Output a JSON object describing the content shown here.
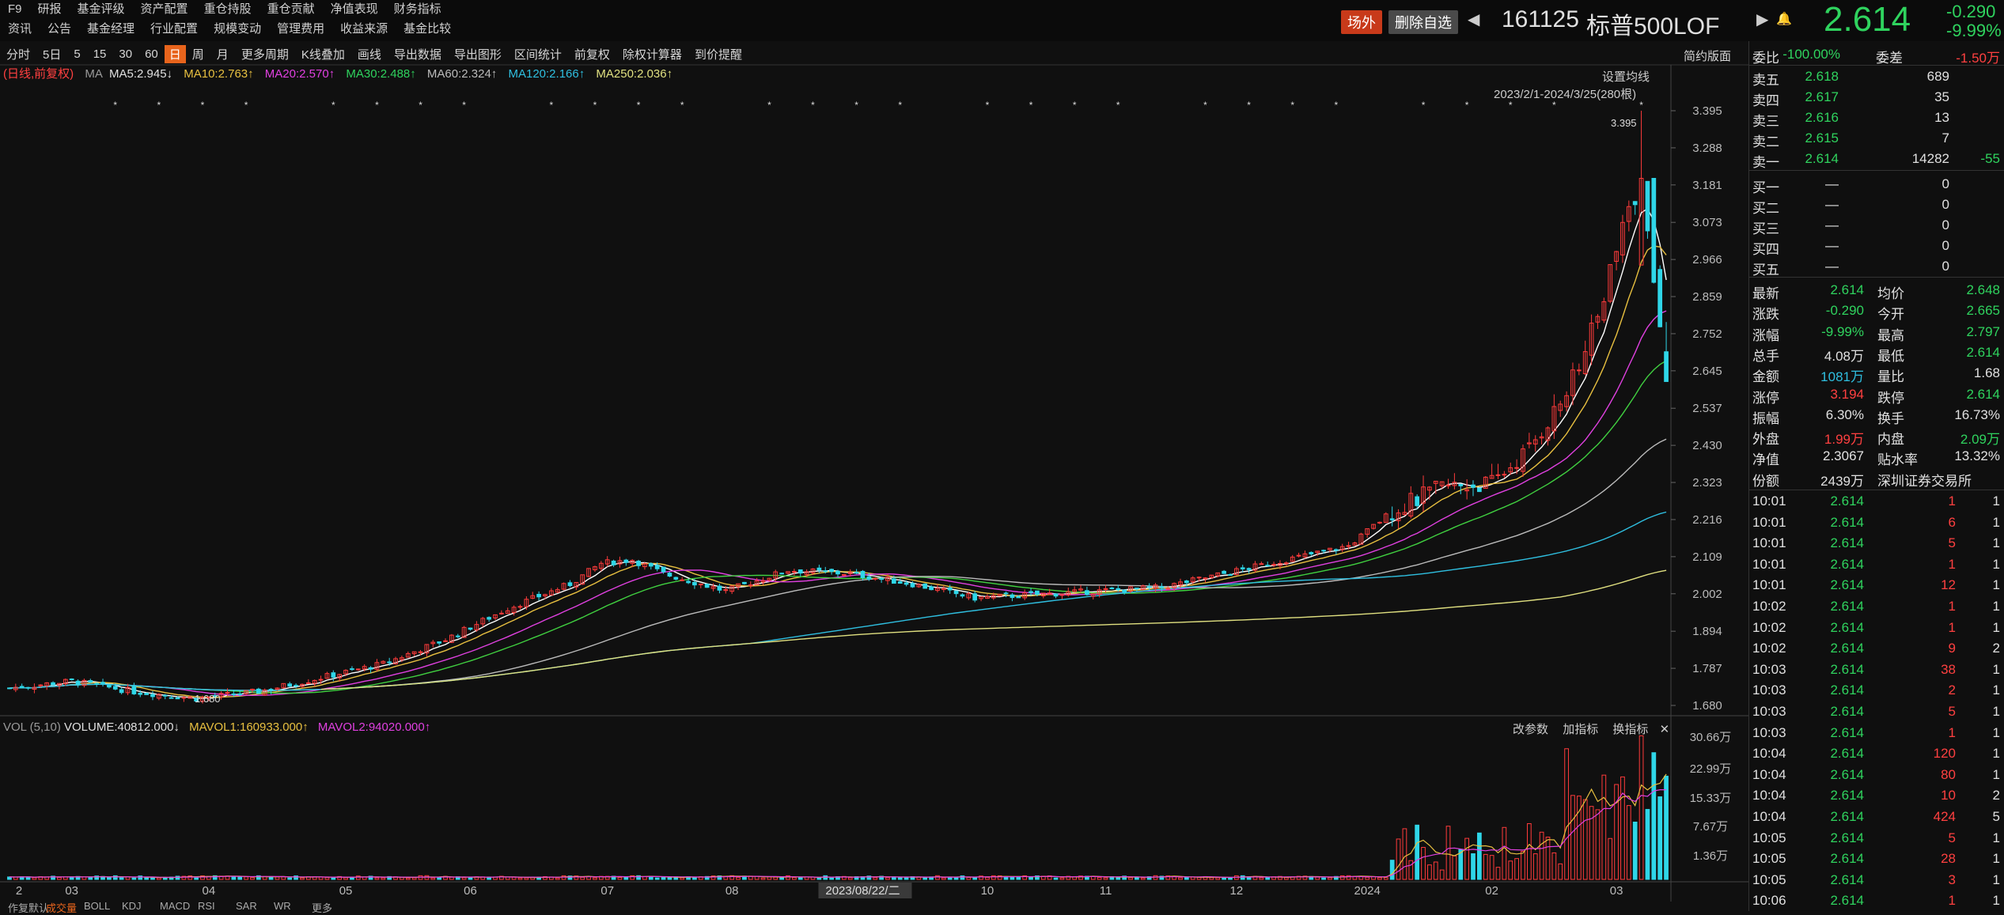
{
  "menu": {
    "row1": [
      "F9",
      "研报",
      "基金评级",
      "资产配置",
      "重仓持股",
      "重仓贡献",
      "净值表现",
      "财务指标"
    ],
    "row2": [
      "资讯",
      "公告",
      "基金经理",
      "行业配置",
      "规模变动",
      "管理费用",
      "收益来源",
      "基金比较"
    ]
  },
  "header": {
    "chnl_label": "场外",
    "del_label": "删除自选",
    "code": "161125",
    "name": "标普500LOF",
    "price": "2.614",
    "change": "-0.290",
    "change_pct": "-9.99%"
  },
  "toolbar": {
    "items": [
      "分时",
      "5日",
      "5",
      "15",
      "30",
      "60",
      "日",
      "周",
      "月",
      "更多周期",
      "K线叠加",
      "画线",
      "导出数据",
      "导出图形",
      "区间统计",
      "前复权",
      "除权计算器",
      "到价提醒"
    ],
    "active": "日",
    "simple": "简约版面"
  },
  "legend": {
    "mode": "(日线,前复权)",
    "ma": "MA",
    "ma5": "MA5:2.945↓",
    "ma10": "MA10:2.763↑",
    "ma20": "MA20:2.570↑",
    "ma30": "MA30:2.488↑",
    "ma60": "MA60:2.324↑",
    "ma120": "MA120:2.166↑",
    "ma250": "MA250:2.036↑"
  },
  "chart_overlay": {
    "set_ma": "设置均线",
    "range": "2023/2/1-2024/3/25(280根)",
    "high_label": "3.395",
    "low_label": "1.680"
  },
  "chart_data": {
    "type": "candlestick",
    "price_axis": [
      "3.395",
      "3.288",
      "3.181",
      "3.073",
      "2.966",
      "2.859",
      "2.752",
      "2.645",
      "2.537",
      "2.430",
      "2.323",
      "2.216",
      "2.109",
      "2.002",
      "1.894",
      "1.787",
      "1.680"
    ],
    "ylim": [
      1.68,
      3.395
    ],
    "x_labels": [
      "2",
      "03",
      "04",
      "05",
      "06",
      "07",
      "08",
      "2023/08/22/二",
      "10",
      "11",
      "12",
      "2024",
      "02",
      "03"
    ],
    "volume_axis": [
      "30.66万",
      "22.99万",
      "15.33万",
      "7.67万",
      "1.36万"
    ],
    "series": [
      {
        "name": "MA5",
        "color": "#ffffff"
      },
      {
        "name": "MA10",
        "color": "#e8c040"
      },
      {
        "name": "MA20",
        "color": "#e040e0"
      },
      {
        "name": "MA30",
        "color": "#40d040"
      },
      {
        "name": "MA60",
        "color": "#bbbbbb"
      },
      {
        "name": "MA120",
        "color": "#2fbfe0"
      },
      {
        "name": "MA250",
        "color": "#e0e080"
      }
    ],
    "close_anchors": [
      [
        0,
        1.73
      ],
      [
        10,
        1.75
      ],
      [
        20,
        1.72
      ],
      [
        30,
        1.7
      ],
      [
        40,
        1.72
      ],
      [
        50,
        1.76
      ],
      [
        60,
        1.8
      ],
      [
        70,
        1.87
      ],
      [
        80,
        1.96
      ],
      [
        90,
        2.03
      ],
      [
        95,
        2.09
      ],
      [
        100,
        2.1
      ],
      [
        105,
        2.06
      ],
      [
        115,
        2.01
      ],
      [
        125,
        2.07
      ],
      [
        135,
        2.06
      ],
      [
        145,
        2.03
      ],
      [
        155,
        1.99
      ],
      [
        165,
        2.0
      ],
      [
        175,
        2.01
      ],
      [
        185,
        2.02
      ],
      [
        195,
        2.06
      ],
      [
        205,
        2.1
      ],
      [
        215,
        2.14
      ],
      [
        222,
        2.24
      ],
      [
        230,
        2.31
      ],
      [
        238,
        2.32
      ],
      [
        244,
        2.42
      ],
      [
        250,
        2.58
      ],
      [
        255,
        2.8
      ],
      [
        259,
        3.05
      ],
      [
        262,
        3.2
      ],
      [
        264,
        2.9
      ],
      [
        266,
        2.614
      ]
    ]
  },
  "volume_legend": {
    "vol": "VOL (5,10)",
    "volume": "VOLUME:40812.000↓",
    "mavol1": "MAVOL1:160933.000↑",
    "mavol2": "MAVOL2:94020.000↑",
    "btn1": "改参数",
    "btn2": "加指标",
    "btn3": "换指标"
  },
  "bottom_tabs": [
    "作复默认",
    "成交量",
    "BOLL",
    "KDJ",
    "MACD",
    "RSI",
    "SAR",
    "WR",
    "更多"
  ],
  "orderbook": {
    "webi_label": "委比",
    "webi": "-100.00%",
    "wecha_label": "委差",
    "wecha": "-1.50万",
    "asks": [
      {
        "label": "卖五",
        "price": "2.618",
        "vol": "689",
        "chg": ""
      },
      {
        "label": "卖四",
        "price": "2.617",
        "vol": "35",
        "chg": ""
      },
      {
        "label": "卖三",
        "price": "2.616",
        "vol": "13",
        "chg": ""
      },
      {
        "label": "卖二",
        "price": "2.615",
        "vol": "7",
        "chg": ""
      },
      {
        "label": "卖一",
        "price": "2.614",
        "vol": "14282",
        "chg": "-55"
      }
    ],
    "bids": [
      {
        "label": "买一",
        "price": "—",
        "vol": "0"
      },
      {
        "label": "买二",
        "price": "—",
        "vol": "0"
      },
      {
        "label": "买三",
        "price": "—",
        "vol": "0"
      },
      {
        "label": "买四",
        "price": "—",
        "vol": "0"
      },
      {
        "label": "买五",
        "price": "—",
        "vol": "0"
      }
    ]
  },
  "stats": [
    {
      "l1": "最新",
      "v1": "2.614",
      "c1": "green",
      "l2": "均价",
      "v2": "2.648",
      "c2": "green"
    },
    {
      "l1": "涨跌",
      "v1": "-0.290",
      "c1": "green",
      "l2": "今开",
      "v2": "2.665",
      "c2": "green"
    },
    {
      "l1": "涨幅",
      "v1": "-9.99%",
      "c1": "green",
      "l2": "最高",
      "v2": "2.797",
      "c2": "green"
    },
    {
      "l1": "总手",
      "v1": "4.08万",
      "c1": "white",
      "l2": "最低",
      "v2": "2.614",
      "c2": "green"
    },
    {
      "l1": "金额",
      "v1": "1081万",
      "c1": "cyan",
      "l2": "量比",
      "v2": "1.68",
      "c2": "white"
    },
    {
      "l1": "涨停",
      "v1": "3.194",
      "c1": "red",
      "l2": "跌停",
      "v2": "2.614",
      "c2": "green"
    },
    {
      "l1": "振幅",
      "v1": "6.30%",
      "c1": "white",
      "l2": "换手",
      "v2": "16.73%",
      "c2": "white"
    },
    {
      "l1": "外盘",
      "v1": "1.99万",
      "c1": "red",
      "l2": "内盘",
      "v2": "2.09万",
      "c2": "green"
    },
    {
      "l1": "净值",
      "v1": "2.3067",
      "c1": "white",
      "l2": "贴水率",
      "v2": "13.32%",
      "c2": "white"
    },
    {
      "l1": "份额",
      "v1": "2439万",
      "c1": "white",
      "l2": "深圳证券交易所",
      "v2": "",
      "c2": "white"
    }
  ],
  "ticks": [
    {
      "t": "10:01",
      "p": "2.614",
      "v": "1",
      "n": "1"
    },
    {
      "t": "10:01",
      "p": "2.614",
      "v": "6",
      "n": "1"
    },
    {
      "t": "10:01",
      "p": "2.614",
      "v": "5",
      "n": "1"
    },
    {
      "t": "10:01",
      "p": "2.614",
      "v": "1",
      "n": "1"
    },
    {
      "t": "10:01",
      "p": "2.614",
      "v": "12",
      "n": "1"
    },
    {
      "t": "10:02",
      "p": "2.614",
      "v": "1",
      "n": "1"
    },
    {
      "t": "10:02",
      "p": "2.614",
      "v": "1",
      "n": "1"
    },
    {
      "t": "10:02",
      "p": "2.614",
      "v": "9",
      "n": "2"
    },
    {
      "t": "10:03",
      "p": "2.614",
      "v": "38",
      "n": "1"
    },
    {
      "t": "10:03",
      "p": "2.614",
      "v": "2",
      "n": "1"
    },
    {
      "t": "10:03",
      "p": "2.614",
      "v": "5",
      "n": "1"
    },
    {
      "t": "10:03",
      "p": "2.614",
      "v": "1",
      "n": "1"
    },
    {
      "t": "10:04",
      "p": "2.614",
      "v": "120",
      "n": "1"
    },
    {
      "t": "10:04",
      "p": "2.614",
      "v": "80",
      "n": "1"
    },
    {
      "t": "10:04",
      "p": "2.614",
      "v": "10",
      "n": "2"
    },
    {
      "t": "10:04",
      "p": "2.614",
      "v": "424",
      "n": "5"
    },
    {
      "t": "10:05",
      "p": "2.614",
      "v": "5",
      "n": "1"
    },
    {
      "t": "10:05",
      "p": "2.614",
      "v": "28",
      "n": "1"
    },
    {
      "t": "10:05",
      "p": "2.614",
      "v": "3",
      "n": "1"
    },
    {
      "t": "10:06",
      "p": "2.614",
      "v": "1",
      "n": "1"
    }
  ]
}
